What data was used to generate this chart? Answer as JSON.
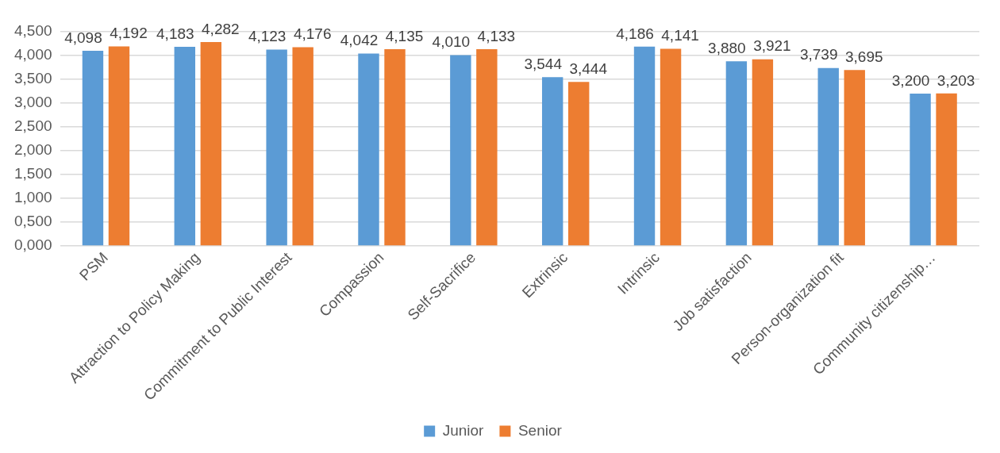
{
  "chart_data": {
    "type": "bar",
    "categories": [
      "PSM",
      "Attraction to Policy Making",
      "Commitment to Public Interest",
      "Compassion",
      "Self-Sacrifice",
      "Extrinsic",
      "Intrinsic",
      "Job satisfaction",
      "Person-organization fit",
      "Community citizenship…"
    ],
    "series": [
      {
        "name": "Junior",
        "color": "#5b9bd5",
        "values": [
          4.098,
          4.183,
          4.123,
          4.042,
          4.01,
          3.544,
          4.186,
          3.88,
          3.739,
          3.2
        ],
        "value_labels": [
          "4,098",
          "4,183",
          "4,123",
          "4,042",
          "4,010",
          "3,544",
          "4,186",
          "3,880",
          "3,739",
          "3,200"
        ]
      },
      {
        "name": "Senior",
        "color": "#ed7d31",
        "values": [
          4.192,
          4.282,
          4.176,
          4.135,
          4.133,
          3.444,
          4.141,
          3.921,
          3.695,
          3.203
        ],
        "value_labels": [
          "4,192",
          "4,282",
          "4,176",
          "4,135",
          "4,133",
          "3,444",
          "4,141",
          "3,921",
          "3,695",
          "3,203"
        ]
      }
    ],
    "ylim": [
      0,
      4.5
    ],
    "yticks": [
      {
        "value": 0,
        "label": "0,000"
      },
      {
        "value": 0.5,
        "label": "0,500"
      },
      {
        "value": 1,
        "label": "1,000"
      },
      {
        "value": 1.5,
        "label": "1,500"
      },
      {
        "value": 2,
        "label": "2,000"
      },
      {
        "value": 2.5,
        "label": "2,500"
      },
      {
        "value": 3,
        "label": "3,000"
      },
      {
        "value": 3.5,
        "label": "3,500"
      },
      {
        "value": 4,
        "label": "4,000"
      },
      {
        "value": 4.5,
        "label": "4,500"
      }
    ],
    "grid": "y",
    "legend": "bottom"
  }
}
